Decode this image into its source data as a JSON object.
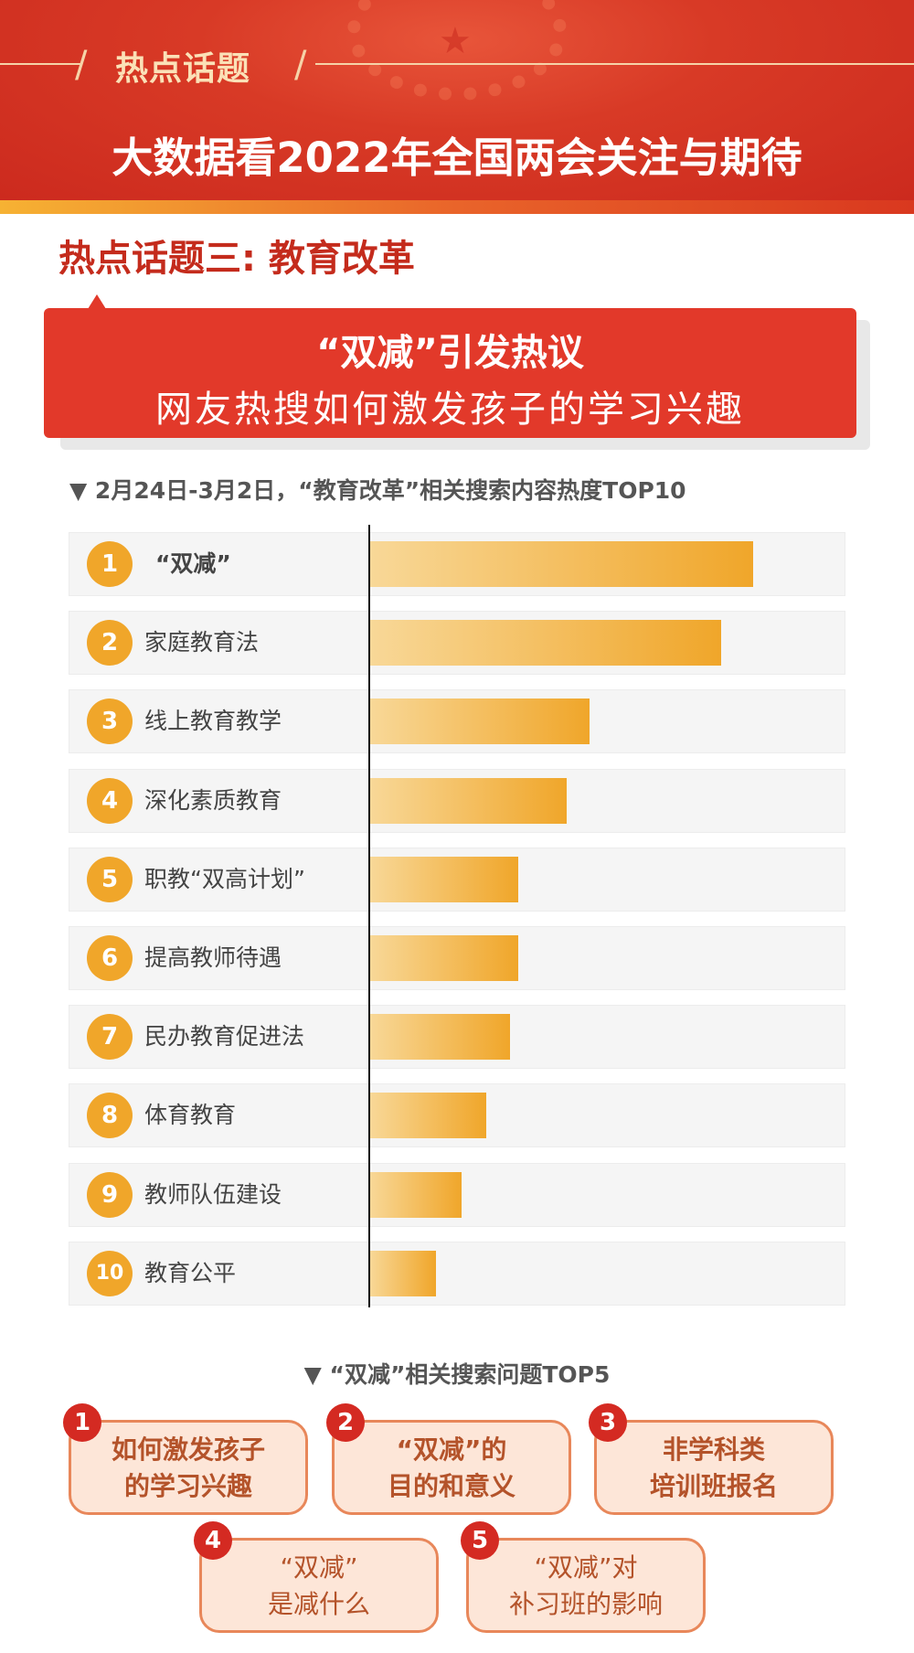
{
  "header": {
    "tag": "热点话题",
    "title": "大数据看2022年全国两会关注与期待"
  },
  "topic": "热点话题三: 教育改革",
  "banner": {
    "line1": "“双减”引发热议",
    "line2": "网友热搜如何激发孩子的学习兴趣"
  },
  "chart_data": {
    "type": "bar",
    "orientation": "horizontal",
    "title": "▼ 2月24日-3月2日，“教育改革”相关搜索内容热度TOP10",
    "ranks": [
      "1",
      "2",
      "3",
      "4",
      "5",
      "6",
      "7",
      "8",
      "9",
      "10"
    ],
    "categories": [
      "“双减”",
      "家庭教育法",
      "线上教育教学",
      "深化素质教育",
      "职教“双高计划”",
      "提高教师待遇",
      "民办教育促进法",
      "体育教育",
      "教师队伍建设",
      "教育公平"
    ],
    "values": [
      100,
      91.7,
      57.4,
      51.4,
      38.8,
      38.8,
      36.7,
      30.5,
      24.0,
      17.4
    ],
    "value_note_unit": "relative",
    "colors": {
      "bar_start": "#f8d898",
      "bar_end": "#f0a62a",
      "rank_circle": "#f0a62a"
    }
  },
  "questions": {
    "title": "▼ “双减”相关搜索问题TOP5",
    "items": [
      {
        "rank": "1",
        "line1": "如何激发孩子",
        "line2": "的学习兴趣"
      },
      {
        "rank": "2",
        "line1": "“双减”的",
        "line2": "目的和意义"
      },
      {
        "rank": "3",
        "line1": "非学科类",
        "line2": "培训班报名"
      },
      {
        "rank": "4",
        "line1": "“双减”",
        "line2": "是减什么"
      },
      {
        "rank": "5",
        "line1": "“双减”对",
        "line2": "补习班的影响"
      }
    ]
  }
}
